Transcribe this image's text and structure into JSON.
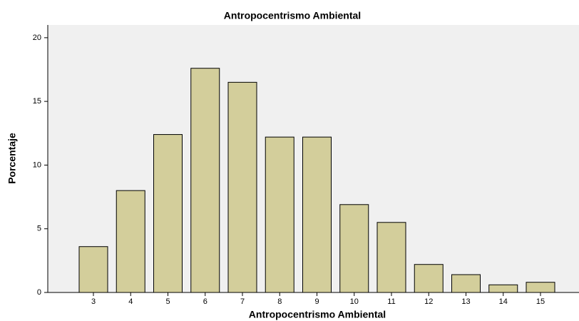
{
  "chart_data": {
    "type": "bar",
    "title": "Antropocentrismo Ambiental",
    "x_label": "Antropocentrismo Ambiental",
    "y_label": "Porcentaje",
    "categories": [
      "3",
      "4",
      "5",
      "6",
      "7",
      "8",
      "9",
      "10",
      "11",
      "12",
      "13",
      "14",
      "15"
    ],
    "values": [
      3.6,
      8.0,
      12.4,
      17.6,
      16.5,
      12.2,
      12.2,
      6.9,
      5.5,
      2.2,
      1.4,
      0.6,
      0.8
    ],
    "color": "#d3ce9b",
    "ylim": [
      0,
      21
    ],
    "yticks": [
      0,
      5,
      10,
      15,
      20
    ],
    "grid": false
  }
}
